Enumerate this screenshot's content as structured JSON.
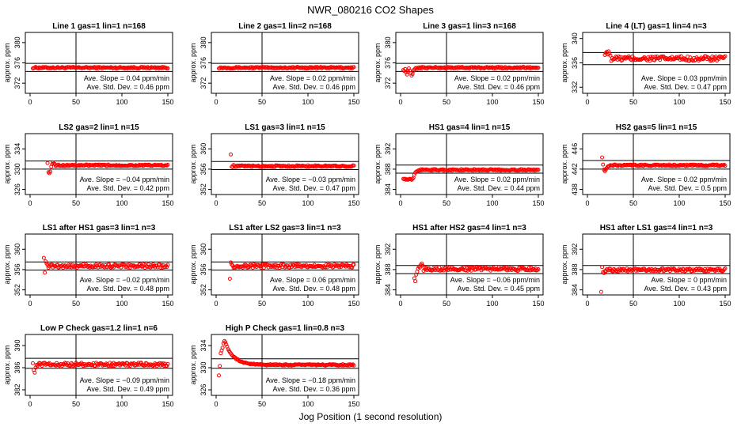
{
  "figure": {
    "title": "NWR_080216  CO2 Shapes",
    "xlabel": "Jog Position (1 second resolution)"
  },
  "colors": {
    "points": "#ff0000",
    "lines": "#000000",
    "background": "#ffffff"
  },
  "chart_data": [
    {
      "type": "scatter",
      "title": "Line 1 gas=1 lin=1 n=168",
      "ylabel": "approx. ppm",
      "xlim": [
        0,
        150
      ],
      "ylim": [
        370,
        382
      ],
      "yticks": [
        "372",
        "376",
        "380"
      ],
      "xticks": [
        "0",
        "50",
        "100",
        "150"
      ],
      "hlines": [
        375.9,
        374.3
      ],
      "vline": 50,
      "slope_text": "Ave. Slope =  0.04  ppm/min",
      "std_text": "Ave. Std. Dev. =  0.46  ppm",
      "grid": false,
      "profile": {
        "x_start": 3,
        "base": 375.05,
        "jitter": 0.15,
        "init": []
      }
    },
    {
      "type": "scatter",
      "title": "Line 2 gas=1 lin=2 n=168",
      "ylabel": "approx. ppm",
      "xlim": [
        0,
        150
      ],
      "ylim": [
        370,
        382
      ],
      "yticks": [
        "372",
        "376",
        "380"
      ],
      "xticks": [
        "0",
        "50",
        "100",
        "150"
      ],
      "hlines": [
        375.9,
        374.3
      ],
      "vline": 50,
      "slope_text": "Ave. Slope =  0.02  ppm/min",
      "std_text": "Ave. Std. Dev. =  0.46  ppm",
      "grid": false,
      "profile": {
        "x_start": 3,
        "base": 375.05,
        "jitter": 0.15,
        "init": []
      }
    },
    {
      "type": "scatter",
      "title": "Line 3 gas=1 lin=3 n=168",
      "ylabel": "approx. ppm",
      "xlim": [
        0,
        150
      ],
      "ylim": [
        370,
        382
      ],
      "yticks": [
        "372",
        "376",
        "380"
      ],
      "xticks": [
        "0",
        "50",
        "100",
        "150"
      ],
      "hlines": [
        375.9,
        374.3
      ],
      "vline": 50,
      "slope_text": "Ave. Slope =  0.02  ppm/min",
      "std_text": "Ave. Std. Dev. =  0.46  ppm",
      "grid": false,
      "profile": {
        "x_start": 3,
        "base": 375.05,
        "jitter": 0.15,
        "init": [
          [
            3,
            374.6
          ],
          [
            4,
            374.4
          ],
          [
            5,
            374.8
          ],
          [
            6,
            374.1
          ],
          [
            7,
            373.7
          ],
          [
            8,
            374.3
          ],
          [
            9,
            374.9
          ],
          [
            10,
            374.5
          ],
          [
            11,
            374.0
          ],
          [
            12,
            373.5
          ],
          [
            13,
            373.8
          ],
          [
            14,
            374.4
          ],
          [
            15,
            374.7
          ],
          [
            16,
            374.9
          ],
          [
            17,
            375.0
          ],
          [
            18,
            374.8
          ],
          [
            19,
            375.0
          ],
          [
            20,
            375.1
          ]
        ]
      }
    },
    {
      "type": "scatter",
      "title": "Line 4 (LT) gas=1 lin=4 n=3",
      "ylabel": "approx. ppm",
      "xlim": [
        0,
        150
      ],
      "ylim": [
        331,
        341
      ],
      "yticks": [
        "332",
        "336",
        "340"
      ],
      "xticks": [
        "0",
        "50",
        "100",
        "150"
      ],
      "hlines": [
        337.7,
        335.7
      ],
      "vline": 50,
      "slope_text": "Ave. Slope =  0.03  ppm/min",
      "std_text": "Ave. Std. Dev. =  0.47  ppm",
      "grid": false,
      "profile": {
        "x_start": 19,
        "base": 336.7,
        "jitter": 0.4,
        "init": [
          [
            19,
            337.3
          ],
          [
            20,
            337.6
          ],
          [
            21,
            337.8
          ],
          [
            22,
            337.4
          ],
          [
            23,
            337.9
          ],
          [
            24,
            337.5
          ],
          [
            25,
            337.2
          ]
        ]
      }
    },
    {
      "type": "scatter",
      "title": "LS2 gas=2 lin=1 n=15",
      "ylabel": "approx. ppm",
      "xlim": [
        0,
        150
      ],
      "ylim": [
        325,
        337
      ],
      "yticks": [
        "326",
        "330",
        "334"
      ],
      "xticks": [
        "0",
        "50",
        "100",
        "150"
      ],
      "hlines": [
        331.6,
        330.0
      ],
      "vline": 50,
      "slope_text": "Ave. Slope =  −0.04  ppm/min",
      "std_text": "Ave. Std. Dev. =  0.42  ppm",
      "grid": false,
      "profile": {
        "x_start": 19,
        "base": 330.75,
        "jitter": 0.15,
        "init": [
          [
            19,
            331.2
          ],
          [
            20,
            329.4
          ],
          [
            21,
            329.2
          ],
          [
            22,
            329.5
          ],
          [
            23,
            330.5
          ],
          [
            24,
            331.0
          ],
          [
            25,
            331.3
          ],
          [
            26,
            331.1
          ],
          [
            27,
            331.0
          ]
        ]
      }
    },
    {
      "type": "scatter",
      "title": "LS1 gas=3 lin=1 n=15",
      "ylabel": "approx. ppm",
      "xlim": [
        0,
        150
      ],
      "ylim": [
        351,
        363
      ],
      "yticks": [
        "352",
        "356",
        "360"
      ],
      "xticks": [
        "0",
        "50",
        "100",
        "150"
      ],
      "hlines": [
        357.5,
        355.9
      ],
      "vline": 50,
      "slope_text": "Ave. Slope =  −0.03  ppm/min",
      "std_text": "Ave. Std. Dev. =  0.47  ppm",
      "grid": false,
      "profile": {
        "x_start": 16,
        "base": 356.6,
        "jitter": 0.15,
        "init": [
          [
            16,
            358.9
          ],
          [
            17,
            356.5
          ],
          [
            18,
            356.4
          ],
          [
            19,
            356.8
          ],
          [
            20,
            356.7
          ]
        ]
      }
    },
    {
      "type": "scatter",
      "title": "HS1 gas=4 lin=1 n=15",
      "ylabel": "approx. ppm",
      "xlim": [
        0,
        150
      ],
      "ylim": [
        383,
        395
      ],
      "yticks": [
        "384",
        "388",
        "392"
      ],
      "xticks": [
        "0",
        "50",
        "100",
        "150"
      ],
      "hlines": [
        388.8,
        387.2
      ],
      "vline": 50,
      "slope_text": "Ave. Slope =  0.02  ppm/min",
      "std_text": "Ave. Std. Dev. =  0.44  ppm",
      "grid": false,
      "profile": {
        "x_start": 3,
        "base": 387.85,
        "jitter": 0.15,
        "init": [
          [
            3,
            386.1
          ],
          [
            4,
            386.0
          ],
          [
            5,
            386.1
          ],
          [
            6,
            385.9
          ],
          [
            7,
            386.0
          ],
          [
            8,
            385.9
          ],
          [
            9,
            386.0
          ],
          [
            10,
            386.1
          ],
          [
            11,
            386.0
          ],
          [
            12,
            385.9
          ],
          [
            13,
            386.1
          ],
          [
            14,
            386.3
          ],
          [
            15,
            386.9
          ],
          [
            16,
            387.3
          ],
          [
            17,
            387.5
          ],
          [
            18,
            387.6
          ],
          [
            19,
            387.7
          ],
          [
            20,
            387.8
          ]
        ]
      }
    },
    {
      "type": "scatter",
      "title": "HS2 gas=5 lin=1 n=15",
      "ylabel": "approx. ppm",
      "xlim": [
        0,
        150
      ],
      "ylim": [
        437,
        449
      ],
      "yticks": [
        "438",
        "442",
        "446"
      ],
      "xticks": [
        "0",
        "50",
        "100",
        "150"
      ],
      "hlines": [
        443.7,
        442.0
      ],
      "vline": 50,
      "slope_text": "Ave. Slope =  0.02  ppm/min",
      "std_text": "Ave. Std. Dev. =  0.5  ppm",
      "grid": false,
      "profile": {
        "x_start": 16,
        "base": 442.75,
        "jitter": 0.15,
        "init": [
          [
            16,
            444.3
          ],
          [
            17,
            442.9
          ],
          [
            18,
            441.9
          ],
          [
            19,
            441.6
          ],
          [
            20,
            441.9
          ],
          [
            21,
            442.2
          ],
          [
            22,
            442.5
          ],
          [
            23,
            442.6
          ]
        ]
      }
    },
    {
      "type": "scatter",
      "title": "LS1 after HS1 gas=3 lin=1 n=3",
      "ylabel": "approx. ppm",
      "xlim": [
        0,
        150
      ],
      "ylim": [
        351,
        363
      ],
      "yticks": [
        "352",
        "356",
        "360"
      ],
      "xticks": [
        "0",
        "50",
        "100",
        "150"
      ],
      "hlines": [
        357.5,
        355.9
      ],
      "vline": 50,
      "slope_text": "Ave. Slope =  −0.02  ppm/min",
      "std_text": "Ave. Std. Dev. =  0.48  ppm",
      "grid": false,
      "profile": {
        "x_start": 15,
        "base": 356.7,
        "jitter": 0.35,
        "init": [
          [
            15,
            358.3
          ],
          [
            16,
            355.4
          ],
          [
            17,
            357.6
          ],
          [
            18,
            357.2
          ],
          [
            19,
            356.9
          ]
        ]
      }
    },
    {
      "type": "scatter",
      "title": "LS1 after LS2 gas=3 lin=1 n=3",
      "ylabel": "approx. ppm",
      "xlim": [
        0,
        150
      ],
      "ylim": [
        351,
        363
      ],
      "yticks": [
        "352",
        "356",
        "360"
      ],
      "xticks": [
        "0",
        "50",
        "100",
        "150"
      ],
      "hlines": [
        357.5,
        355.9
      ],
      "vline": 50,
      "slope_text": "Ave. Slope =  0.06  ppm/min",
      "std_text": "Ave. Std. Dev. =  0.48  ppm",
      "grid": false,
      "profile": {
        "x_start": 15,
        "base": 356.7,
        "jitter": 0.35,
        "init": [
          [
            15,
            354.2
          ],
          [
            16,
            357.4
          ],
          [
            17,
            357.0
          ],
          [
            18,
            356.8
          ]
        ]
      }
    },
    {
      "type": "scatter",
      "title": "HS1 after HS2 gas=4 lin=1 n=3",
      "ylabel": "approx. ppm",
      "xlim": [
        0,
        150
      ],
      "ylim": [
        383,
        395
      ],
      "yticks": [
        "384",
        "388",
        "392"
      ],
      "xticks": [
        "0",
        "50",
        "100",
        "150"
      ],
      "hlines": [
        388.8,
        387.2
      ],
      "vline": 50,
      "slope_text": "Ave. Slope =  −0.06  ppm/min",
      "std_text": "Ave. Std. Dev. =  0.45  ppm",
      "grid": false,
      "profile": {
        "x_start": 15,
        "base": 388.1,
        "jitter": 0.35,
        "init": [
          [
            15,
            386.3
          ],
          [
            16,
            385.7
          ],
          [
            17,
            387.0
          ],
          [
            18,
            387.6
          ],
          [
            19,
            388.2
          ],
          [
            20,
            388.6
          ],
          [
            21,
            388.4
          ],
          [
            22,
            388.9
          ],
          [
            23,
            389.2
          ],
          [
            24,
            388.8
          ]
        ]
      }
    },
    {
      "type": "scatter",
      "title": "HS1 after LS1 gas=4 lin=1 n=3",
      "ylabel": "approx. ppm",
      "xlim": [
        0,
        150
      ],
      "ylim": [
        383,
        395
      ],
      "yticks": [
        "384",
        "388",
        "392"
      ],
      "xticks": [
        "0",
        "50",
        "100",
        "150"
      ],
      "hlines": [
        388.8,
        387.2
      ],
      "vline": 50,
      "slope_text": "Ave. Slope =  0  ppm/min",
      "std_text": "Ave. Std. Dev. =  0.43  ppm",
      "grid": false,
      "profile": {
        "x_start": 15,
        "base": 387.95,
        "jitter": 0.3,
        "init": [
          [
            15,
            383.6
          ],
          [
            16,
            388.5
          ],
          [
            17,
            387.5
          ],
          [
            18,
            387.3
          ],
          [
            19,
            387.7
          ]
        ]
      }
    },
    {
      "type": "scatter",
      "title": "Low P Check gas=1.2 lin=1 n=6",
      "ylabel": "approx. ppm",
      "xlim": [
        0,
        150
      ],
      "ylim": [
        381,
        392
      ],
      "yticks": [
        "382",
        "386",
        "390"
      ],
      "xticks": [
        "0",
        "50",
        "100",
        "150"
      ],
      "hlines": [
        387.7,
        385.9
      ],
      "vline": 50,
      "slope_text": "Ave. Slope =  −0.09  ppm/min",
      "std_text": "Ave. Std. Dev. =  0.49  ppm",
      "grid": false,
      "profile": {
        "x_start": 3,
        "base": 386.6,
        "jitter": 0.3,
        "init": [
          [
            3,
            386.8
          ],
          [
            4,
            385.6
          ],
          [
            5,
            385.1
          ],
          [
            6,
            386.0
          ],
          [
            7,
            386.5
          ]
        ]
      }
    },
    {
      "type": "scatter",
      "title": "High P Check gas=1 lin=0.8 n=3",
      "ylabel": "approx. ppm",
      "xlim": [
        0,
        150
      ],
      "ylim": [
        325,
        336
      ],
      "yticks": [
        "326",
        "330",
        "334"
      ],
      "xticks": [
        "0",
        "50",
        "100",
        "150"
      ],
      "hlines": [
        331.6,
        329.9
      ],
      "vline": 50,
      "slope_text": "Ave. Slope =  −0.18  ppm/min",
      "std_text": "Ave. Std. Dev. =  0.36  ppm",
      "grid": false,
      "profile": {
        "x_start": 3,
        "base": 330.5,
        "jitter": 0.12,
        "decay": {
          "from": 12,
          "amp": 3.3,
          "tau": 9
        },
        "init": [
          [
            3,
            328.6
          ],
          [
            4,
            330.3
          ],
          [
            5,
            332.6
          ],
          [
            6,
            333.1
          ],
          [
            7,
            333.6
          ],
          [
            8,
            334.4
          ],
          [
            9,
            334.8
          ],
          [
            10,
            334.6
          ],
          [
            11,
            334.2
          ],
          [
            12,
            333.8
          ]
        ]
      }
    }
  ]
}
